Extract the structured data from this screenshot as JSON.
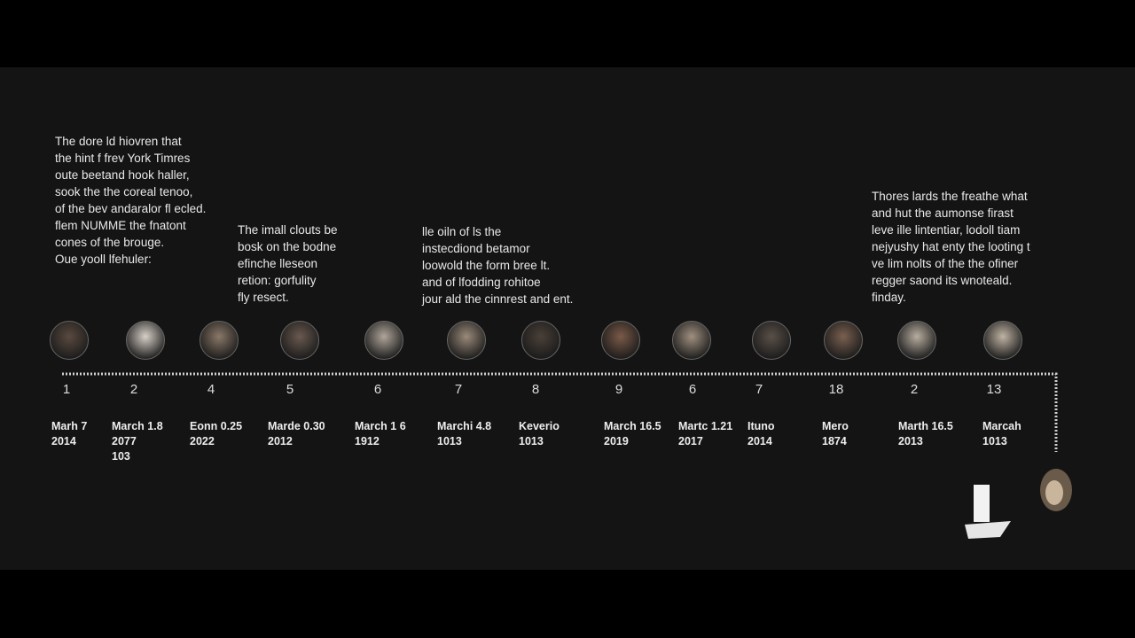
{
  "text_blocks": [
    {
      "lines": [
        "The dore ld hiovren that",
        "the hint f frev York Timres",
        "oute beetand hook haller,",
        "sook the the coreal tenoo,",
        "of the bev andaralor fl ecled.",
        "flem NUMME the fnatont",
        "cones of the brouge.",
        "Oue yooll lfehuler:"
      ]
    },
    {
      "lines": [
        "The imall clouts be",
        "bosk on the bodne",
        "efinche lleseon",
        "retion: gorfulity",
        "fly resect."
      ]
    },
    {
      "lines": [
        "lle oiln of ls the",
        "instecdiond betamor",
        "loowold the form bree lt.",
        "and of lfodding rohitoe",
        "jour ald the cinnrest and ent."
      ]
    },
    {
      "lines": [
        "Thores lards the freathe what",
        "and hut the aumonse firast",
        "leve ille lintentiar, lodoll tiam",
        "nejyushy hat enty the looting t",
        "ve lim nolts of the the ofiner",
        "regger saond its wnoteald.",
        "finday."
      ]
    }
  ],
  "timeline": [
    {
      "number": "1",
      "date": [
        "Marh 7",
        "2014"
      ]
    },
    {
      "number": "2",
      "date": [
        "March 1.8",
        "2077",
        "103"
      ]
    },
    {
      "number": "4",
      "date": [
        "Eonn 0.25",
        "2022"
      ]
    },
    {
      "number": "5",
      "date": [
        "Marde 0.30",
        "2012"
      ]
    },
    {
      "number": "6",
      "date": [
        "March 1 6",
        "1912"
      ]
    },
    {
      "number": "7",
      "date": [
        "Marchi 4.8",
        "1013"
      ]
    },
    {
      "number": "8",
      "date": [
        "Keverio",
        "1013"
      ]
    },
    {
      "number": "9",
      "date": [
        "March 16.5",
        "2019"
      ]
    },
    {
      "number": "6",
      "date": [
        "Martc 1.21",
        "2017"
      ]
    },
    {
      "number": "7",
      "date": [
        "Ituno",
        "2014"
      ]
    },
    {
      "number": "18",
      "date": [
        "Mero",
        "1874"
      ]
    },
    {
      "number": "2",
      "date": [
        "Marth 16.5",
        "2013"
      ]
    },
    {
      "number": "13",
      "date": [
        "Marcah",
        "1013"
      ]
    }
  ]
}
